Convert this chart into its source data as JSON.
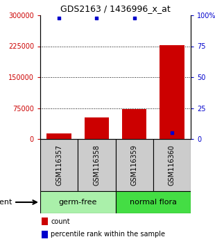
{
  "title": "GDS2163 / 1436996_x_at",
  "samples": [
    "GSM116357",
    "GSM116358",
    "GSM116359",
    "GSM116360"
  ],
  "counts": [
    13000,
    52000,
    72000,
    228000
  ],
  "percentiles": [
    98,
    98,
    98,
    5
  ],
  "groups": [
    {
      "name": "germ-free",
      "start": 0,
      "end": 2,
      "color": "#aaf0aa"
    },
    {
      "name": "normal flora",
      "start": 2,
      "end": 4,
      "color": "#44dd44"
    }
  ],
  "bar_color": "#cc0000",
  "percentile_color": "#0000cc",
  "ylim_left": [
    0,
    300000
  ],
  "ylim_right": [
    0,
    100
  ],
  "yticks_left": [
    0,
    75000,
    150000,
    225000,
    300000
  ],
  "ytick_labels_left": [
    "0",
    "75000",
    "150000",
    "225000",
    "300000"
  ],
  "yticks_right": [
    0,
    25,
    50,
    75,
    100
  ],
  "ytick_labels_right": [
    "0",
    "25",
    "50",
    "75",
    "100%"
  ],
  "left_tick_color": "#cc0000",
  "right_tick_color": "#0000cc",
  "sample_box_color": "#cccccc",
  "agent_label": "agent",
  "legend_count_label": "count",
  "legend_percentile_label": "percentile rank within the sample",
  "fig_width": 3.1,
  "fig_height": 3.54,
  "dpi": 100
}
